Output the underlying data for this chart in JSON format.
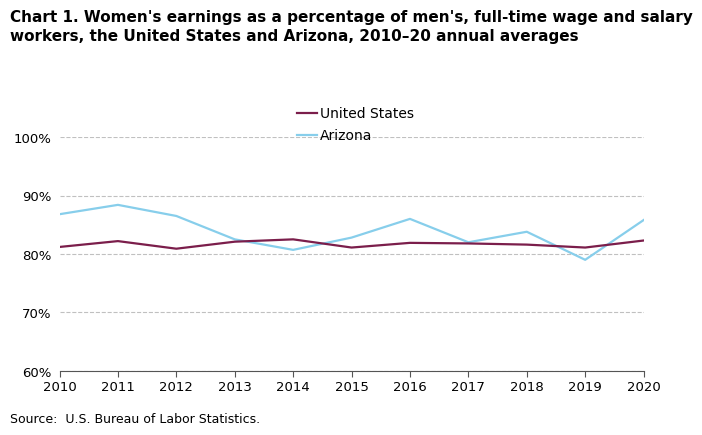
{
  "years": [
    2010,
    2011,
    2012,
    2013,
    2014,
    2015,
    2016,
    2017,
    2018,
    2019,
    2020
  ],
  "us_values": [
    81.2,
    82.2,
    80.9,
    82.1,
    82.5,
    81.1,
    81.9,
    81.8,
    81.6,
    81.1,
    82.3
  ],
  "az_values": [
    86.8,
    88.4,
    86.5,
    82.5,
    80.7,
    82.8,
    86.0,
    82.0,
    83.8,
    79.0,
    85.8
  ],
  "us_color": "#7b1e4b",
  "az_color": "#87ceeb",
  "us_label": "United States",
  "az_label": "Arizona",
  "title_line1": "Chart 1. Women's earnings as a percentage of men's, full-time wage and salary",
  "title_line2": "workers, the United States and Arizona, 2010–20 annual averages",
  "ylim": [
    60,
    100
  ],
  "yticks": [
    60,
    70,
    80,
    90,
    100
  ],
  "ytick_labels": [
    "60%",
    "70%",
    "80%",
    "90%",
    "100%"
  ],
  "source_text": "Source:  U.S. Bureau of Labor Statistics.",
  "background_color": "#ffffff",
  "grid_color": "#c0c0c0",
  "line_width": 1.6,
  "title_fontsize": 11.0,
  "tick_fontsize": 9.5,
  "legend_fontsize": 10,
  "source_fontsize": 9
}
